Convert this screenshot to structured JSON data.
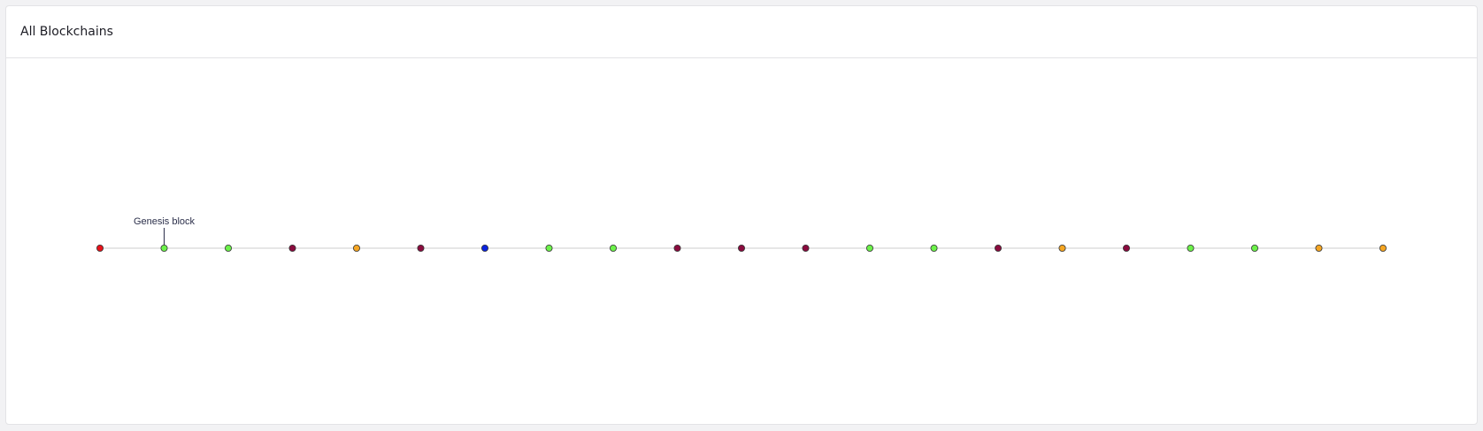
{
  "header": {
    "title": "All Blockchains"
  },
  "chain": {
    "annotation": {
      "label": "Genesis block",
      "block_index": 1
    },
    "colors": {
      "line": "#cccccc",
      "stroke": "#333333"
    },
    "blocks": [
      {
        "color": "#e8121a"
      },
      {
        "color": "#6cf24a"
      },
      {
        "color": "#6cf24a"
      },
      {
        "color": "#8a0b3e"
      },
      {
        "color": "#f5a623"
      },
      {
        "color": "#8a0b3e"
      },
      {
        "color": "#0a24e0"
      },
      {
        "color": "#6cf24a"
      },
      {
        "color": "#6cf24a"
      },
      {
        "color": "#8a0b3e"
      },
      {
        "color": "#8a0b3e"
      },
      {
        "color": "#8a0b3e"
      },
      {
        "color": "#6cf24a"
      },
      {
        "color": "#6cf24a"
      },
      {
        "color": "#8a0b3e"
      },
      {
        "color": "#f5a623"
      },
      {
        "color": "#8a0b3e"
      },
      {
        "color": "#6cf24a"
      },
      {
        "color": "#6cf24a"
      },
      {
        "color": "#f5a623"
      },
      {
        "color": "#f5a623"
      }
    ]
  }
}
